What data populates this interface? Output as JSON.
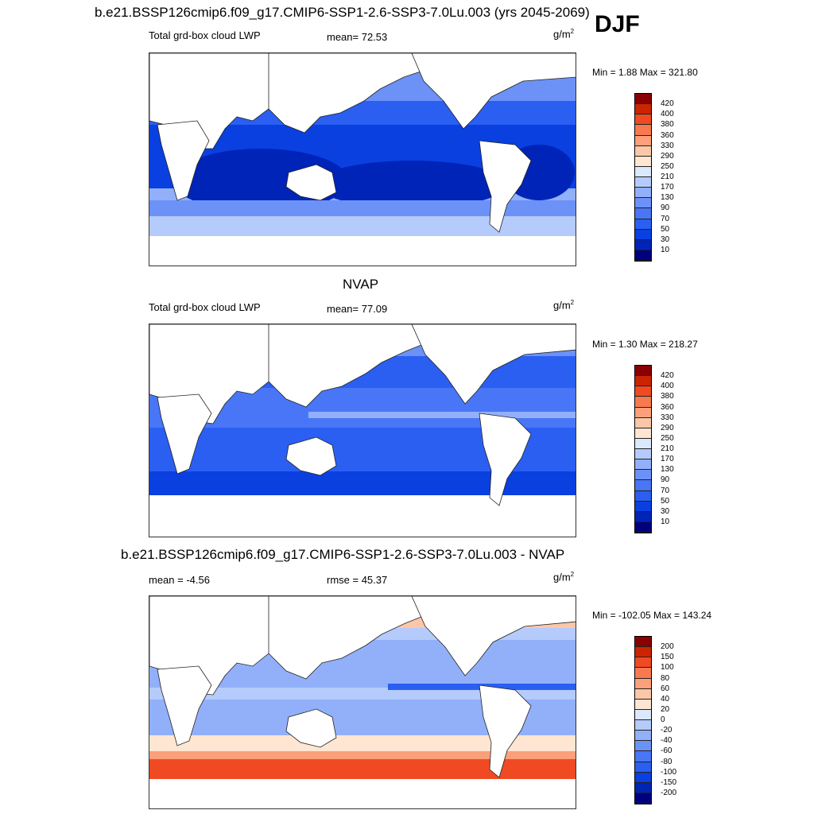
{
  "figure": {
    "season": "DJF",
    "units_base": "g/m",
    "units_exp": "2"
  },
  "panels": [
    {
      "title": "b.e21.BSSP126cmip6.f09_g17.CMIP6-SSP1-2.6-SSP3-7.0Lu.003 (yrs 2045-2069)",
      "variable": "Total grd-box cloud LWP",
      "mean_label": "mean=  72.53",
      "minmax": "Min =   1.88 Max = 321.80"
    },
    {
      "title": "NVAP",
      "variable": "Total grd-box cloud LWP",
      "mean_label": "mean=  77.09",
      "minmax": "Min =   1.30 Max = 218.27"
    },
    {
      "title": "b.e21.BSSP126cmip6.f09_g17.CMIP6-SSP1-2.6-SSP3-7.0Lu.003 - NVAP",
      "mean_label": "mean =  -4.56",
      "rmse_label": "rmse =  45.37",
      "minmax": "Min = -102.05 Max = 143.24"
    }
  ],
  "chart_data": [
    {
      "type": "heatmap",
      "title": "b.e21.BSSP126cmip6.f09_g17.CMIP6-SSP1-2.6-SSP3-7.0Lu.003 (yrs 2045-2069)",
      "subtitle": "Total grd-box cloud LWP",
      "variable": "Total grd-box cloud LWP",
      "units": "g/m2",
      "season": "DJF",
      "mean": 72.53,
      "min": 1.88,
      "max": 321.8,
      "colorbar_levels": [
        10,
        30,
        50,
        70,
        90,
        130,
        170,
        210,
        250,
        290,
        330,
        360,
        380,
        400,
        420
      ],
      "colorbar_labels": [
        "420",
        "400",
        "380",
        "360",
        "330",
        "290",
        "250",
        "210",
        "170",
        "130",
        "90",
        "70",
        "50",
        "30",
        "10"
      ],
      "colors": [
        "#00007f",
        "#0024b8",
        "#0a40e0",
        "#2a5ff2",
        "#4876f6",
        "#6c92f8",
        "#92b0fa",
        "#b5cbfc",
        "#dbe8fe",
        "#fee6d2",
        "#fcc7a8",
        "#fba07a",
        "#f9794f",
        "#f04a22",
        "#cc2400",
        "#8b0000"
      ]
    },
    {
      "type": "heatmap",
      "title": "NVAP",
      "subtitle": "Total grd-box cloud LWP",
      "units": "g/m2",
      "mean": 77.09,
      "min": 1.3,
      "max": 218.27,
      "colorbar_levels": [
        10,
        30,
        50,
        70,
        90,
        130,
        170,
        210,
        250,
        290,
        330,
        360,
        380,
        400,
        420
      ],
      "colorbar_labels": [
        "420",
        "400",
        "380",
        "360",
        "330",
        "290",
        "250",
        "210",
        "170",
        "130",
        "90",
        "70",
        "50",
        "30",
        "10"
      ],
      "colors": [
        "#00007f",
        "#0024b8",
        "#0a40e0",
        "#2a5ff2",
        "#4876f6",
        "#6c92f8",
        "#92b0fa",
        "#b5cbfc",
        "#dbe8fe",
        "#fee6d2",
        "#fcc7a8",
        "#fba07a",
        "#f9794f",
        "#f04a22",
        "#cc2400",
        "#8b0000"
      ]
    },
    {
      "type": "heatmap",
      "title": "b.e21.BSSP126cmip6.f09_g17.CMIP6-SSP1-2.6-SSP3-7.0Lu.003 - NVAP",
      "units": "g/m2",
      "mean": -4.56,
      "rmse": 45.37,
      "min": -102.05,
      "max": 143.24,
      "colorbar_levels": [
        -200,
        -150,
        -100,
        -80,
        -60,
        -40,
        -20,
        0,
        20,
        40,
        60,
        80,
        100,
        150,
        200
      ],
      "colorbar_labels": [
        "200",
        "150",
        "100",
        "80",
        "60",
        "40",
        "20",
        "0",
        "-20",
        "-40",
        "-60",
        "-80",
        "-100",
        "-150",
        "-200"
      ],
      "colors": [
        "#00007f",
        "#0024b8",
        "#0a40e0",
        "#2a5ff2",
        "#4876f6",
        "#6c92f8",
        "#92b0fa",
        "#b5cbfc",
        "#dbe8fe",
        "#fee6d2",
        "#fcc7a8",
        "#fba07a",
        "#f9794f",
        "#f04a22",
        "#cc2400",
        "#8b0000"
      ]
    }
  ]
}
